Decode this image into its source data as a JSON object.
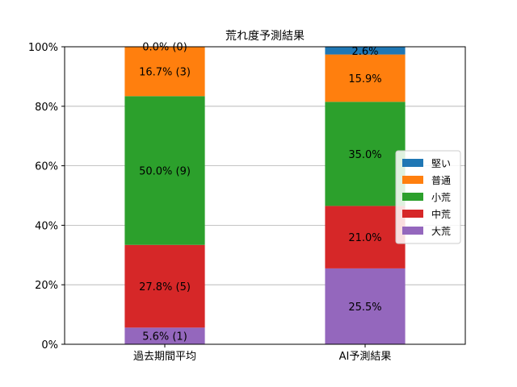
{
  "chart_data": {
    "type": "bar",
    "stacked": true,
    "title": "荒れ度予測結果",
    "xlabel": "",
    "ylabel": "",
    "ylim": [
      0,
      100
    ],
    "yticks": [
      "0%",
      "20%",
      "40%",
      "60%",
      "80%",
      "100%"
    ],
    "grid": "y",
    "legend_position": "right",
    "categories": [
      "過去期間平均",
      "AI予測結果"
    ],
    "series": [
      {
        "name": "大荒",
        "color": "#9467bd",
        "values": [
          5.6,
          25.5
        ],
        "labels": [
          "5.6% (1)",
          "25.5%"
        ]
      },
      {
        "name": "中荒",
        "color": "#d62728",
        "values": [
          27.8,
          21.0
        ],
        "labels": [
          "27.8% (5)",
          "21.0%"
        ]
      },
      {
        "name": "小荒",
        "color": "#2ca02c",
        "values": [
          50.0,
          35.0
        ],
        "labels": [
          "50.0% (9)",
          "35.0%"
        ]
      },
      {
        "name": "普通",
        "color": "#ff7f0e",
        "values": [
          16.7,
          15.9
        ],
        "labels": [
          "16.7% (3)",
          "15.9%"
        ]
      },
      {
        "name": "堅い",
        "color": "#1f77b4",
        "values": [
          0.0,
          2.6
        ],
        "labels": [
          "0.0% (0)",
          "2.6%"
        ]
      }
    ],
    "legend_order": [
      "堅い",
      "普通",
      "小荒",
      "中荒",
      "大荒"
    ]
  }
}
